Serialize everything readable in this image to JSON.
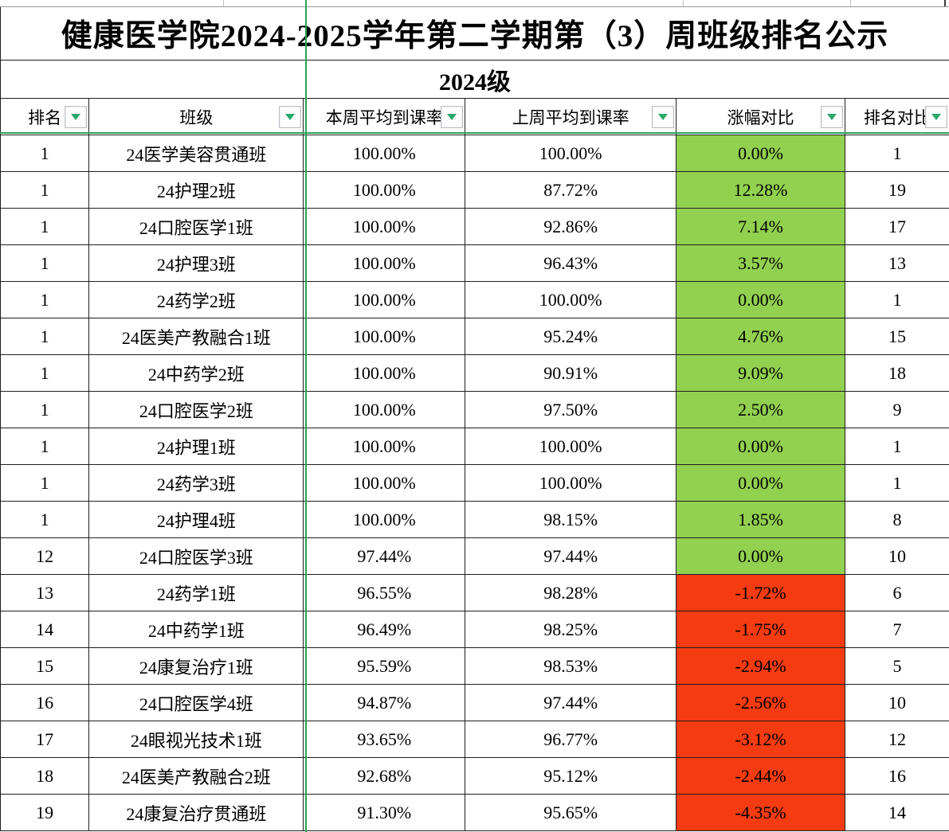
{
  "title": "健康医学院2024-2025学年第二学期第（3）周班级排名公示",
  "subtitle": "2024级",
  "columns": [
    {
      "key": "rank",
      "label": "排名"
    },
    {
      "key": "class_name",
      "label": "班级"
    },
    {
      "key": "this_week_rate",
      "label": "本周平均到课率"
    },
    {
      "key": "last_week_rate",
      "label": "上周平均到课率"
    },
    {
      "key": "change",
      "label": "涨幅对比"
    },
    {
      "key": "rank_change",
      "label": "排名对比"
    }
  ],
  "colors": {
    "positive_fill": "#92D050",
    "negative_fill": "#F43B11",
    "pane_line": "#2BA45B",
    "filter_arrow": "#2AA86A"
  },
  "rows": [
    {
      "rank": "1",
      "class_name": "24医学美容贯通班",
      "this_week_rate": "100.00%",
      "last_week_rate": "100.00%",
      "change": "0.00%",
      "rank_change": "1",
      "trend": "up"
    },
    {
      "rank": "1",
      "class_name": "24护理2班",
      "this_week_rate": "100.00%",
      "last_week_rate": "87.72%",
      "change": "12.28%",
      "rank_change": "19",
      "trend": "up"
    },
    {
      "rank": "1",
      "class_name": "24口腔医学1班",
      "this_week_rate": "100.00%",
      "last_week_rate": "92.86%",
      "change": "7.14%",
      "rank_change": "17",
      "trend": "up"
    },
    {
      "rank": "1",
      "class_name": "24护理3班",
      "this_week_rate": "100.00%",
      "last_week_rate": "96.43%",
      "change": "3.57%",
      "rank_change": "13",
      "trend": "up"
    },
    {
      "rank": "1",
      "class_name": "24药学2班",
      "this_week_rate": "100.00%",
      "last_week_rate": "100.00%",
      "change": "0.00%",
      "rank_change": "1",
      "trend": "up"
    },
    {
      "rank": "1",
      "class_name": "24医美产教融合1班",
      "this_week_rate": "100.00%",
      "last_week_rate": "95.24%",
      "change": "4.76%",
      "rank_change": "15",
      "trend": "up"
    },
    {
      "rank": "1",
      "class_name": "24中药学2班",
      "this_week_rate": "100.00%",
      "last_week_rate": "90.91%",
      "change": "9.09%",
      "rank_change": "18",
      "trend": "up"
    },
    {
      "rank": "1",
      "class_name": "24口腔医学2班",
      "this_week_rate": "100.00%",
      "last_week_rate": "97.50%",
      "change": "2.50%",
      "rank_change": "9",
      "trend": "up"
    },
    {
      "rank": "1",
      "class_name": "24护理1班",
      "this_week_rate": "100.00%",
      "last_week_rate": "100.00%",
      "change": "0.00%",
      "rank_change": "1",
      "trend": "up"
    },
    {
      "rank": "1",
      "class_name": "24药学3班",
      "this_week_rate": "100.00%",
      "last_week_rate": "100.00%",
      "change": "0.00%",
      "rank_change": "1",
      "trend": "up"
    },
    {
      "rank": "1",
      "class_name": "24护理4班",
      "this_week_rate": "100.00%",
      "last_week_rate": "98.15%",
      "change": "1.85%",
      "rank_change": "8",
      "trend": "up"
    },
    {
      "rank": "12",
      "class_name": "24口腔医学3班",
      "this_week_rate": "97.44%",
      "last_week_rate": "97.44%",
      "change": "0.00%",
      "rank_change": "10",
      "trend": "up"
    },
    {
      "rank": "13",
      "class_name": "24药学1班",
      "this_week_rate": "96.55%",
      "last_week_rate": "98.28%",
      "change": "-1.72%",
      "rank_change": "6",
      "trend": "down"
    },
    {
      "rank": "14",
      "class_name": "24中药学1班",
      "this_week_rate": "96.49%",
      "last_week_rate": "98.25%",
      "change": "-1.75%",
      "rank_change": "7",
      "trend": "down"
    },
    {
      "rank": "15",
      "class_name": "24康复治疗1班",
      "this_week_rate": "95.59%",
      "last_week_rate": "98.53%",
      "change": "-2.94%",
      "rank_change": "5",
      "trend": "down"
    },
    {
      "rank": "16",
      "class_name": "24口腔医学4班",
      "this_week_rate": "94.87%",
      "last_week_rate": "97.44%",
      "change": "-2.56%",
      "rank_change": "10",
      "trend": "down"
    },
    {
      "rank": "17",
      "class_name": "24眼视光技术1班",
      "this_week_rate": "93.65%",
      "last_week_rate": "96.77%",
      "change": "-3.12%",
      "rank_change": "12",
      "trend": "down"
    },
    {
      "rank": "18",
      "class_name": "24医美产教融合2班",
      "this_week_rate": "92.68%",
      "last_week_rate": "95.12%",
      "change": "-2.44%",
      "rank_change": "16",
      "trend": "down"
    },
    {
      "rank": "19",
      "class_name": "24康复治疗贯通班",
      "this_week_rate": "91.30%",
      "last_week_rate": "95.65%",
      "change": "-4.35%",
      "rank_change": "14",
      "trend": "down"
    }
  ]
}
